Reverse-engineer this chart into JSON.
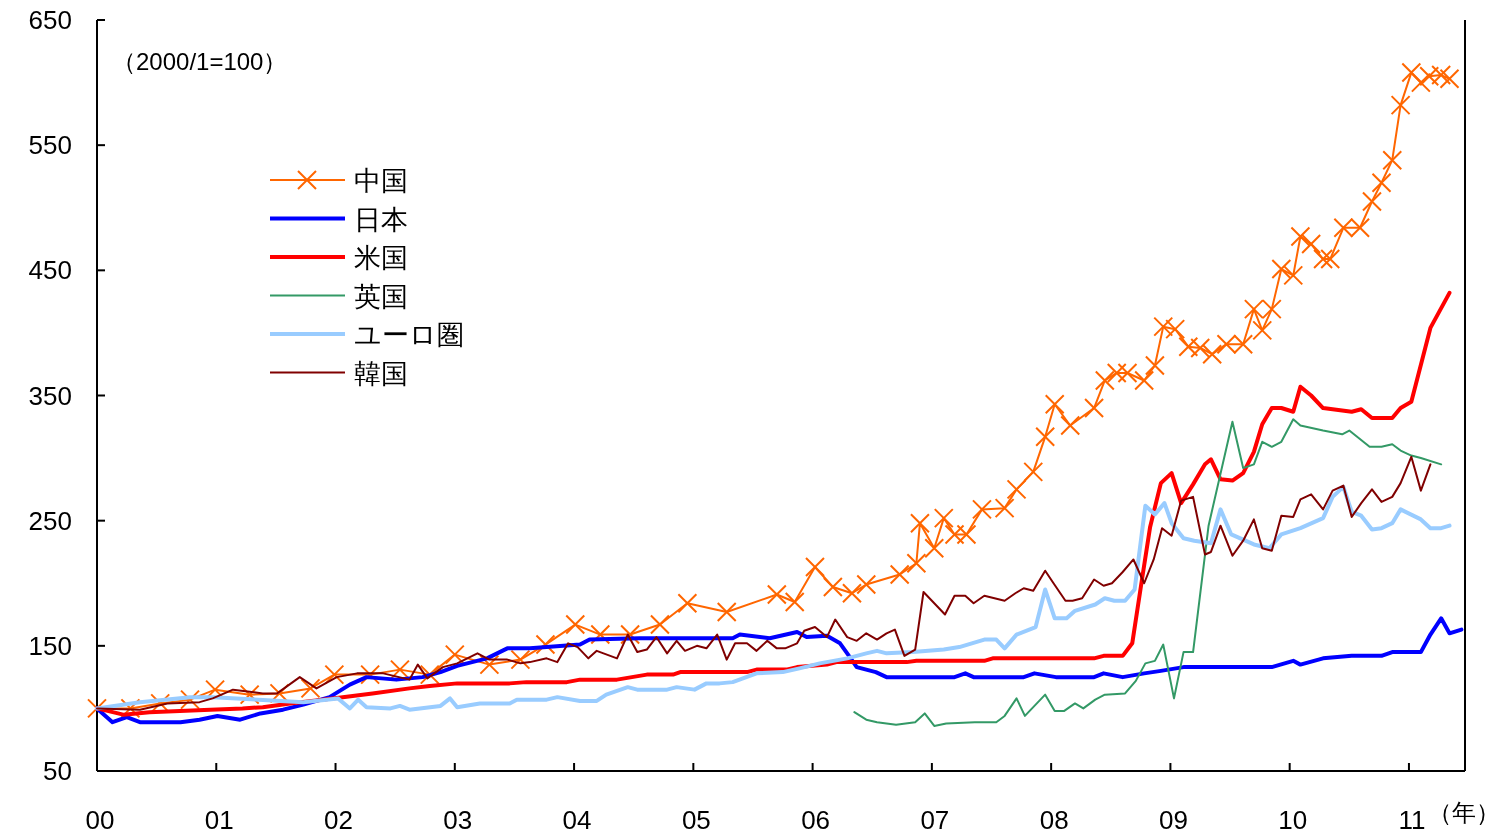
{
  "chart_data": {
    "type": "line",
    "xlabel": "（年）",
    "annotations": [
      "（2000/1=100）"
    ],
    "xlim": [
      0,
      11.47
    ],
    "ylim": [
      50,
      650
    ],
    "xticks": [
      {
        "value": 0,
        "label": "00"
      },
      {
        "value": 1,
        "label": "01"
      },
      {
        "value": 2,
        "label": "02"
      },
      {
        "value": 3,
        "label": "03"
      },
      {
        "value": 4,
        "label": "04"
      },
      {
        "value": 5,
        "label": "05"
      },
      {
        "value": 6,
        "label": "06"
      },
      {
        "value": 7,
        "label": "07"
      },
      {
        "value": 8,
        "label": "08"
      },
      {
        "value": 9,
        "label": "09"
      },
      {
        "value": 10,
        "label": "10"
      },
      {
        "value": 11,
        "label": "11"
      }
    ],
    "yticks": [
      50,
      150,
      250,
      350,
      450,
      550,
      650
    ],
    "grid": false,
    "legend": "top left",
    "series": [
      {
        "name": "中国",
        "color": "#ff6600",
        "marker": "cross",
        "x": [
          0,
          0.28,
          0.53,
          0.78,
          0.99,
          1.28,
          1.53,
          1.79,
          1.99,
          2.29,
          2.54,
          2.79,
          3.0,
          3.29,
          3.55,
          3.76,
          4.01,
          4.22,
          4.47,
          4.72,
          4.95,
          5.28,
          5.7,
          5.85,
          6.02,
          6.17,
          6.33,
          6.45,
          6.73,
          6.87,
          6.9,
          7.02,
          7.1,
          7.19,
          7.29,
          7.42,
          7.61,
          7.71,
          7.85,
          7.95,
          8.03,
          8.16,
          8.36,
          8.45,
          8.55,
          8.64,
          8.78,
          8.87,
          8.94,
          9.04,
          9.15,
          9.25,
          9.35,
          9.47,
          9.61,
          9.7,
          9.77,
          9.85,
          9.93,
          10.03,
          10.09,
          10.18,
          10.28,
          10.34,
          10.45,
          10.59,
          10.69,
          10.77,
          10.86,
          10.93,
          11.02,
          11.1,
          11.17,
          11.27,
          11.34
        ],
        "values": [
          100,
          100,
          104,
          107,
          115,
          111,
          112,
          116,
          127,
          127,
          131,
          127,
          143,
          135,
          139,
          151,
          167,
          159,
          159,
          167,
          184,
          177,
          191,
          185,
          213,
          197,
          192,
          199,
          207,
          216,
          248,
          228,
          252,
          239,
          239,
          259,
          260,
          275,
          289,
          317,
          343,
          326,
          340,
          362,
          368,
          368,
          362,
          374,
          405,
          403,
          389,
          388,
          383,
          391,
          391,
          419,
          402,
          419,
          451,
          446,
          477,
          471,
          459,
          459,
          484,
          484,
          505,
          520,
          538,
          582,
          608,
          600,
          605,
          606,
          603
        ]
      },
      {
        "name": "日本",
        "color": "#0000ff",
        "x": [
          0,
          0.13,
          0.25,
          0.36,
          0.7,
          0.86,
          1.01,
          1.2,
          1.37,
          1.56,
          1.73,
          1.95,
          2.12,
          2.26,
          2.51,
          2.73,
          2.88,
          3.02,
          3.27,
          3.44,
          3.63,
          4.05,
          4.13,
          4.55,
          5.33,
          5.39,
          5.64,
          5.87,
          5.95,
          6.12,
          6.23,
          6.29,
          6.37,
          6.53,
          6.62,
          7.19,
          7.28,
          7.35,
          7.77,
          7.86,
          8.04,
          8.36,
          8.44,
          8.6,
          8.78,
          8.92,
          9.11,
          9.85,
          10.03,
          10.09,
          10.28,
          10.52,
          10.77,
          10.86,
          11.1,
          11.18,
          11.27,
          11.34,
          11.44
        ],
        "values": [
          100,
          89,
          93,
          89,
          89,
          91,
          94,
          91,
          96,
          99,
          103,
          109,
          119,
          125,
          123,
          125,
          129,
          134,
          140,
          148,
          148,
          151,
          155,
          156,
          156,
          159,
          156,
          161,
          157,
          158,
          152,
          144,
          133,
          129,
          125,
          125,
          128,
          125,
          125,
          128,
          125,
          125,
          128,
          125,
          128,
          130,
          133,
          133,
          138,
          135,
          140,
          142,
          142,
          145,
          145,
          159,
          172,
          160,
          163
        ]
      },
      {
        "name": "米国",
        "color": "#ff0000",
        "x": [
          0,
          0.22,
          0.44,
          0.95,
          1.22,
          1.39,
          1.62,
          1.89,
          2.06,
          2.31,
          2.62,
          2.79,
          3.02,
          3.46,
          3.6,
          3.94,
          4.05,
          4.36,
          4.61,
          4.83,
          4.89,
          5.45,
          5.53,
          5.78,
          5.87,
          6.12,
          6.2,
          6.79,
          6.87,
          7.44,
          7.51,
          8.36,
          8.44,
          8.6,
          8.68,
          8.76,
          8.83,
          8.92,
          9.01,
          9.09,
          9.19,
          9.29,
          9.34,
          9.42,
          9.52,
          9.61,
          9.7,
          9.77,
          9.85,
          9.93,
          10.03,
          10.09,
          10.18,
          10.28,
          10.52,
          10.6,
          10.69,
          10.86,
          10.93,
          11.02,
          11.18,
          11.34
        ],
        "values": [
          100,
          95,
          97,
          99,
          100,
          101,
          104,
          107,
          109,
          112,
          116,
          118,
          120,
          120,
          121,
          121,
          123,
          123,
          127,
          127,
          129,
          129,
          131,
          131,
          133,
          135,
          137,
          137,
          138,
          138,
          140,
          140,
          142,
          142,
          152,
          202,
          245,
          280,
          288,
          264,
          279,
          295,
          299,
          283,
          282,
          288,
          305,
          327,
          340,
          340,
          337,
          357,
          350,
          340,
          337,
          339,
          332,
          332,
          340,
          345,
          404,
          432
        ]
      },
      {
        "name": "英国",
        "color": "#339966",
        "x": [
          6.35,
          6.45,
          6.54,
          6.7,
          6.86,
          6.94,
          7.02,
          7.12,
          7.36,
          7.54,
          7.61,
          7.71,
          7.78,
          7.95,
          8.03,
          8.11,
          8.2,
          8.27,
          8.37,
          8.45,
          8.62,
          8.71,
          8.79,
          8.87,
          8.94,
          9.03,
          9.11,
          9.19,
          9.32,
          9.52,
          9.61,
          9.7,
          9.77,
          9.85,
          9.93,
          10.03,
          10.09,
          10.28,
          10.44,
          10.5,
          10.67,
          10.77,
          10.86,
          10.93,
          11.02,
          11.1,
          11.27
        ],
        "values": [
          97,
          91,
          89,
          87,
          89,
          96,
          86,
          88,
          89,
          89,
          94,
          108,
          94,
          111,
          98,
          98,
          104,
          100,
          107,
          111,
          112,
          122,
          136,
          138,
          151,
          108,
          145,
          145,
          246,
          329,
          292,
          295,
          313,
          309,
          313,
          331,
          326,
          322,
          319,
          322,
          309,
          309,
          311,
          306,
          302,
          300,
          295
        ]
      },
      {
        "name": "ユーロ圏",
        "color": "#99ccff",
        "x": [
          0,
          0.36,
          0.78,
          0.97,
          1.73,
          2.02,
          2.12,
          2.19,
          2.26,
          2.46,
          2.54,
          2.62,
          2.88,
          2.96,
          3.02,
          3.21,
          3.46,
          3.52,
          3.77,
          3.86,
          4.05,
          4.19,
          4.27,
          4.45,
          4.53,
          4.78,
          4.86,
          5.01,
          5.11,
          5.22,
          5.33,
          5.53,
          5.75,
          5.89,
          6.06,
          6.29,
          6.45,
          6.54,
          6.62,
          6.84,
          7.1,
          7.23,
          7.44,
          7.54,
          7.61,
          7.71,
          7.87,
          7.95,
          8.03,
          8.13,
          8.2,
          8.37,
          8.45,
          8.53,
          8.62,
          8.7,
          8.79,
          8.87,
          8.95,
          9.01,
          9.11,
          9.2,
          9.34,
          9.42,
          9.51,
          9.7,
          9.83,
          9.93,
          10.09,
          10.28,
          10.36,
          10.45,
          10.52,
          10.6,
          10.69,
          10.77,
          10.86,
          10.93,
          11.1,
          11.18,
          11.27,
          11.34
        ],
        "values": [
          100,
          105,
          109,
          109,
          105,
          108,
          100,
          107,
          101,
          100,
          102,
          99,
          102,
          108,
          101,
          104,
          104,
          107,
          107,
          109,
          106,
          106,
          111,
          117,
          115,
          115,
          117,
          115,
          120,
          120,
          121,
          128,
          129,
          132,
          136,
          140,
          144,
          146,
          144,
          145,
          147,
          149,
          155,
          155,
          148,
          159,
          165,
          195,
          172,
          172,
          178,
          183,
          188,
          186,
          186,
          195,
          262,
          255,
          264,
          248,
          236,
          234,
          232,
          259,
          239,
          231,
          228,
          239,
          244,
          252,
          269,
          277,
          257,
          254,
          243,
          244,
          248,
          259,
          251,
          244,
          244,
          246
        ]
      },
      {
        "name": "韓国",
        "color": "#800000",
        "x": [
          0,
          0.36,
          0.59,
          0.86,
          0.97,
          1.14,
          1.39,
          1.51,
          1.7,
          1.84,
          2.01,
          2.18,
          2.4,
          2.62,
          2.69,
          2.77,
          2.9,
          3.02,
          3.19,
          3.29,
          3.44,
          3.55,
          3.63,
          3.77,
          3.86,
          3.95,
          4.03,
          4.12,
          4.19,
          4.36,
          4.45,
          4.53,
          4.61,
          4.69,
          4.78,
          4.86,
          4.93,
          5.03,
          5.11,
          5.2,
          5.28,
          5.35,
          5.45,
          5.53,
          5.62,
          5.7,
          5.77,
          5.87,
          5.93,
          6.02,
          6.12,
          6.19,
          6.29,
          6.37,
          6.45,
          6.54,
          6.62,
          6.69,
          6.77,
          6.86,
          6.93,
          7.02,
          7.11,
          7.19,
          7.28,
          7.35,
          7.44,
          7.61,
          7.7,
          7.77,
          7.85,
          7.95,
          8.02,
          8.12,
          8.18,
          8.26,
          8.36,
          8.44,
          8.51,
          8.6,
          8.69,
          8.78,
          8.86,
          8.93,
          9.01,
          9.09,
          9.19,
          9.29,
          9.34,
          9.42,
          9.52,
          9.61,
          9.7,
          9.77,
          9.85,
          9.93,
          10.03,
          10.09,
          10.18,
          10.28,
          10.36,
          10.45,
          10.52,
          10.6,
          10.69,
          10.77,
          10.86,
          10.93,
          11.02,
          11.1,
          11.18
        ],
        "values": [
          100,
          99,
          104,
          105,
          108,
          115,
          112,
          112,
          125,
          116,
          125,
          128,
          128,
          123,
          135,
          124,
          133,
          136,
          144,
          139,
          139,
          136,
          137,
          140,
          137,
          152,
          149,
          140,
          146,
          140,
          159,
          145,
          147,
          157,
          144,
          154,
          146,
          150,
          148,
          159,
          139,
          152,
          152,
          146,
          154,
          148,
          148,
          152,
          162,
          165,
          157,
          171,
          157,
          154,
          160,
          155,
          160,
          163,
          142,
          147,
          193,
          184,
          175,
          190,
          190,
          184,
          190,
          186,
          192,
          196,
          194,
          210,
          200,
          186,
          186,
          188,
          203,
          198,
          200,
          209,
          219,
          200,
          219,
          244,
          238,
          266,
          269,
          223,
          225,
          246,
          222,
          234,
          251,
          228,
          226,
          254,
          253,
          267,
          271,
          259,
          274,
          278,
          253,
          264,
          275,
          265,
          269,
          280,
          301,
          274,
          295
        ]
      }
    ]
  }
}
